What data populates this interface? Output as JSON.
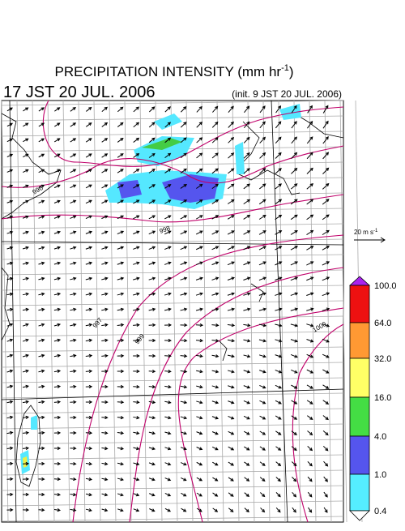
{
  "header": {
    "title": "PRECIPITATION INTENSITY (mm hr",
    "title_exponent": "-1",
    "title_close": ")",
    "valid_time": "17 JST 20 JUL. 2006",
    "init_time": "(init. 9 JST 20 JUL. 2006)"
  },
  "wind_legend": {
    "label": "20 m s",
    "exponent": "-1"
  },
  "colorbar": {
    "labels": [
      "100.0",
      "64.0",
      "32.0",
      "16.0",
      "4.0",
      "1.0",
      "0.4"
    ]
  },
  "isobars": {
    "labels": [
      "996",
      "998",
      "997",
      "999",
      "1000"
    ]
  }
}
